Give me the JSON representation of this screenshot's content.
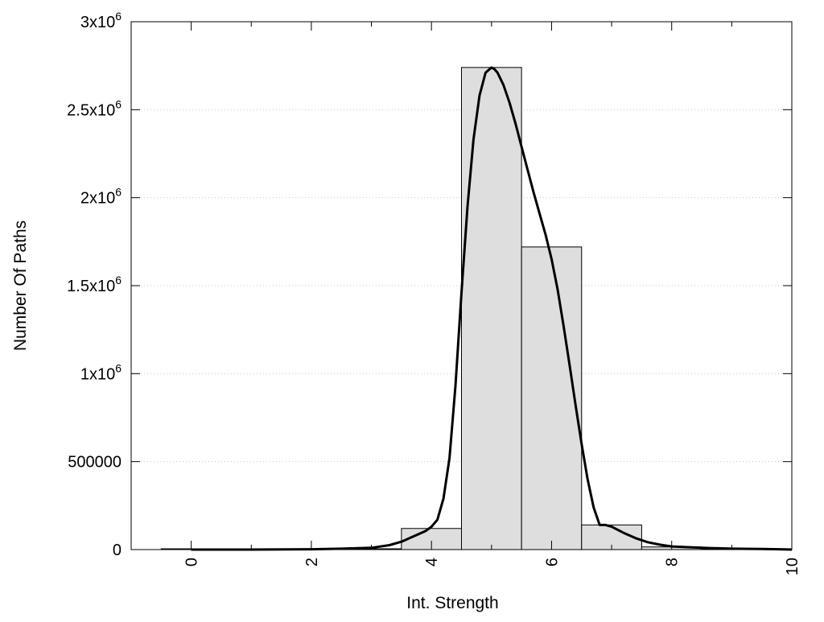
{
  "chart_data": {
    "type": "bar",
    "subtype": "histogram with fitted curve",
    "xlabel": "Int. Strength",
    "ylabel": "Number Of Paths",
    "xlim": [
      -1,
      10
    ],
    "ylim": [
      0,
      3000000
    ],
    "x_ticks": [
      0,
      2,
      4,
      6,
      8,
      10
    ],
    "x_tick_labels": [
      "0",
      "2",
      "4",
      "6",
      "8",
      "10"
    ],
    "x_minor_ticks": [
      1,
      3,
      5,
      7,
      9
    ],
    "x_tick_label_rotation": "vertical",
    "y_ticks": [
      {
        "value": 0,
        "mantissa": "0",
        "exp": ""
      },
      {
        "value": 500000,
        "mantissa": "500000",
        "exp": ""
      },
      {
        "value": 1000000,
        "mantissa": "1x10",
        "exp": "6"
      },
      {
        "value": 1500000,
        "mantissa": "1.5x10",
        "exp": "6"
      },
      {
        "value": 2000000,
        "mantissa": "2x10",
        "exp": "6"
      },
      {
        "value": 2500000,
        "mantissa": "2.5x10",
        "exp": "6"
      },
      {
        "value": 3000000,
        "mantissa": "3x10",
        "exp": "6"
      }
    ],
    "grid": "horizontal dotted",
    "bin_width": 1,
    "bins": [
      {
        "center": 0,
        "value": 0
      },
      {
        "center": 1,
        "value": 0
      },
      {
        "center": 2,
        "value": 0
      },
      {
        "center": 3,
        "value": 0
      },
      {
        "center": 4,
        "value": 120000
      },
      {
        "center": 5,
        "value": 2740000
      },
      {
        "center": 6,
        "value": 1720000
      },
      {
        "center": 7,
        "value": 140000
      },
      {
        "center": 8,
        "value": 15000
      },
      {
        "center": 9,
        "value": 2000
      },
      {
        "center": 10,
        "value": 0
      }
    ],
    "curve": {
      "x": [
        0,
        1,
        2,
        2.5,
        3,
        3.3,
        3.5,
        3.7,
        3.9,
        4,
        4.1,
        4.2,
        4.3,
        4.4,
        4.5,
        4.6,
        4.7,
        4.8,
        4.9,
        5,
        5.05,
        5.1,
        5.2,
        5.3,
        5.4,
        5.5,
        5.6,
        5.7,
        5.8,
        5.9,
        6,
        6.1,
        6.2,
        6.3,
        6.4,
        6.5,
        6.6,
        6.7,
        6.8,
        6.9,
        7,
        7.2,
        7.4,
        7.6,
        7.8,
        8,
        8.5,
        9,
        9.5,
        9.8,
        10
      ],
      "y": [
        0,
        0,
        2000,
        5000,
        10000,
        25000,
        45000,
        75000,
        105000,
        130000,
        170000,
        290000,
        520000,
        930000,
        1460000,
        1950000,
        2330000,
        2580000,
        2710000,
        2740000,
        2730000,
        2710000,
        2640000,
        2540000,
        2420000,
        2290000,
        2160000,
        2030000,
        1910000,
        1790000,
        1650000,
        1480000,
        1270000,
        1050000,
        820000,
        600000,
        400000,
        240000,
        140000,
        140000,
        130000,
        95000,
        65000,
        42000,
        28000,
        18000,
        10000,
        5000,
        3000,
        2000,
        0
      ]
    }
  }
}
